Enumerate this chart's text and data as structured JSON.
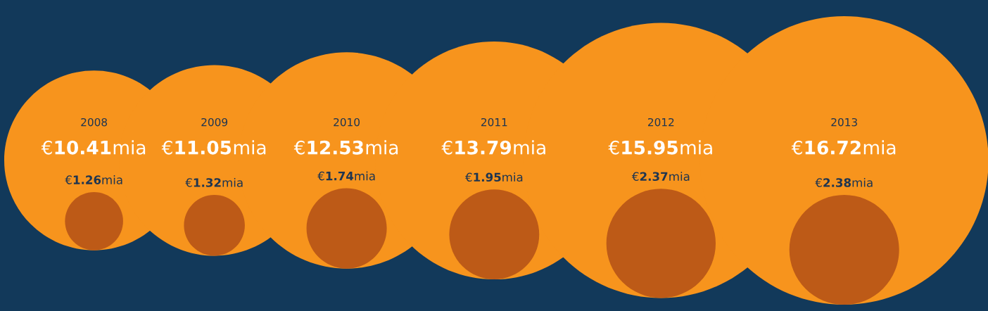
{
  "chart_data": {
    "type": "other",
    "categories": [
      "2008",
      "2009",
      "2010",
      "2011",
      "2012",
      "2013"
    ],
    "series": [
      {
        "color": "#f7941d",
        "values": [
          10.41,
          11.05,
          12.53,
          13.79,
          15.95,
          16.72
        ],
        "value_labels": [
          "€10.41mia",
          "€11.05mia",
          "€12.53mia",
          "€13.79mia",
          "€15.95mia",
          "€16.72mia"
        ]
      },
      {
        "color": "#bd5a17",
        "values": [
          1.26,
          1.32,
          1.74,
          1.95,
          2.37,
          2.38
        ],
        "value_labels": [
          "€1.26mia",
          "€1.32mia",
          "€1.74mia",
          "€1.95mia",
          "€2.37mia",
          "€2.38mia"
        ]
      }
    ]
  }
}
